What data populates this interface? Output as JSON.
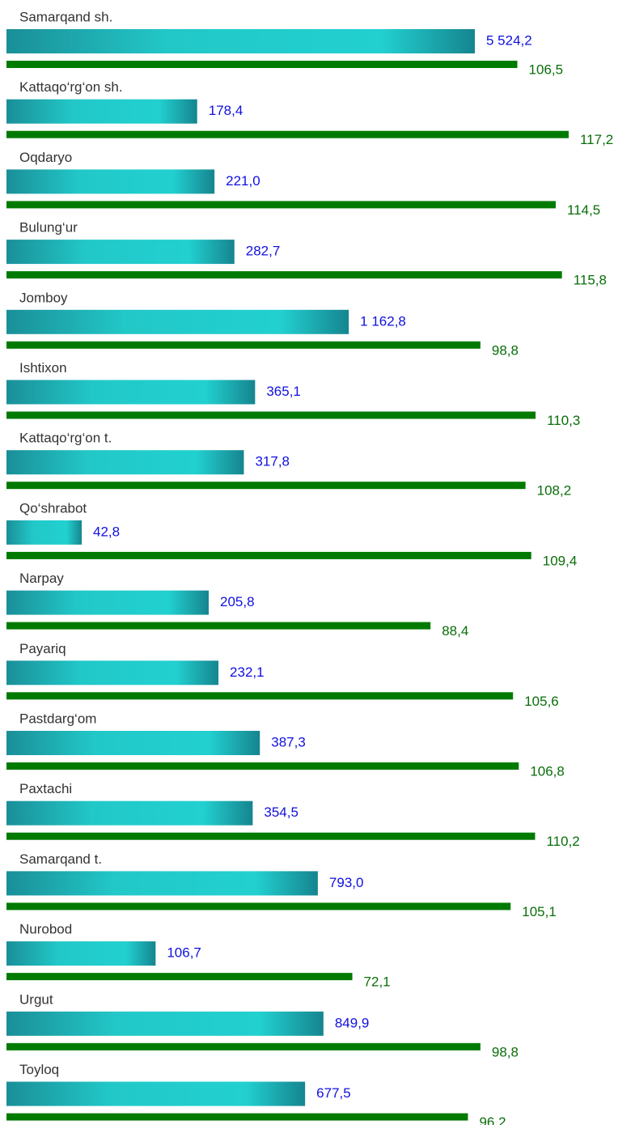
{
  "chart_data": {
    "type": "bar",
    "categories": [
      "Samarqand sh.",
      "Kattaqo‘rg‘on sh.",
      "Oqdaryo",
      "Bulung‘ur",
      "Jomboy",
      "Ishtixon",
      "Kattaqo‘rg‘on t.",
      "Qo‘shrabot",
      "Narpay",
      "Payariq",
      "Pastdarg‘om",
      "Paxtachi",
      "Samarqand t.",
      "Nurobod",
      "Urgut",
      "Toyloq"
    ],
    "series": [
      {
        "color": "#20cccc",
        "values": [
          5524.2,
          178.4,
          221.0,
          282.7,
          1162.8,
          365.1,
          317.8,
          42.8,
          205.8,
          232.1,
          387.3,
          354.5,
          793.0,
          106.7,
          849.9,
          677.5
        ],
        "value_labels": [
          "5 524,2",
          "178,4",
          "221,0",
          "282,7",
          "1 162,8",
          "365,1",
          "317,8",
          "42,8",
          "205,8",
          "232,1",
          "387,3",
          "354,5",
          "793,0",
          "106,7",
          "849,9",
          "677,5"
        ]
      },
      {
        "color": "#007a00",
        "values": [
          106.5,
          117.2,
          114.5,
          115.8,
          98.8,
          110.3,
          108.2,
          109.4,
          88.4,
          105.6,
          106.8,
          110.2,
          105.1,
          72.1,
          98.8,
          96.2
        ],
        "value_labels": [
          "106,5",
          "117,2",
          "114,5",
          "115,8",
          "98,8",
          "110,3",
          "108,2",
          "109,4",
          "88,4",
          "105,6",
          "106,8",
          "110,2",
          "105,1",
          "72,1",
          "98,8",
          "96,2"
        ]
      }
    ]
  }
}
